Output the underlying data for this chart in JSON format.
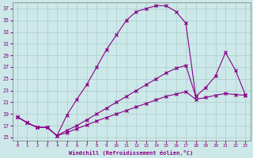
{
  "xlabel": "Windchill (Refroidissement éolien,°C)",
  "bg_color": "#cde8e8",
  "line_color": "#880088",
  "xlim": [
    -0.5,
    23.5
  ],
  "ylim": [
    14.5,
    38
  ],
  "xticks": [
    0,
    1,
    2,
    3,
    4,
    5,
    6,
    7,
    8,
    9,
    10,
    11,
    12,
    13,
    14,
    15,
    16,
    17,
    18,
    19,
    20,
    21,
    22,
    23
  ],
  "yticks": [
    15,
    17,
    19,
    21,
    23,
    25,
    27,
    29,
    31,
    33,
    35,
    37
  ],
  "grid_color": "#aacccc",
  "curve1_x": [
    0,
    1,
    2,
    3,
    4,
    5,
    6,
    7,
    8,
    9,
    10,
    11,
    12,
    13,
    14,
    15,
    16,
    17,
    18
  ],
  "curve1_y": [
    18.5,
    17.5,
    16.7,
    16.7,
    15.3,
    18.8,
    21.5,
    24.0,
    27.0,
    30.0,
    32.5,
    35.0,
    36.5,
    37.0,
    37.5,
    37.5,
    36.5,
    34.5,
    22.0
  ],
  "curve2_x": [
    0,
    1,
    2,
    3,
    4,
    5,
    6,
    7,
    8,
    9,
    10,
    11,
    12,
    13,
    14,
    15,
    16,
    17,
    18,
    19,
    20,
    21,
    22,
    23
  ],
  "curve2_y": [
    18.5,
    17.5,
    16.7,
    16.7,
    15.3,
    16.2,
    17.0,
    18.0,
    19.0,
    20.0,
    21.0,
    22.0,
    23.0,
    24.0,
    25.0,
    26.0,
    26.8,
    27.3,
    22.0,
    23.5,
    25.5,
    29.5,
    26.5,
    22.3
  ],
  "curve3_x": [
    0,
    1,
    2,
    3,
    4,
    5,
    6,
    7,
    8,
    9,
    10,
    11,
    12,
    13,
    14,
    15,
    16,
    17,
    18,
    19,
    20,
    21,
    22,
    23
  ],
  "curve3_y": [
    18.5,
    17.5,
    16.7,
    16.7,
    15.3,
    15.8,
    16.5,
    17.1,
    17.8,
    18.4,
    19.0,
    19.6,
    20.2,
    20.8,
    21.4,
    22.0,
    22.4,
    22.8,
    21.5,
    21.8,
    22.2,
    22.5,
    22.3,
    22.2
  ]
}
